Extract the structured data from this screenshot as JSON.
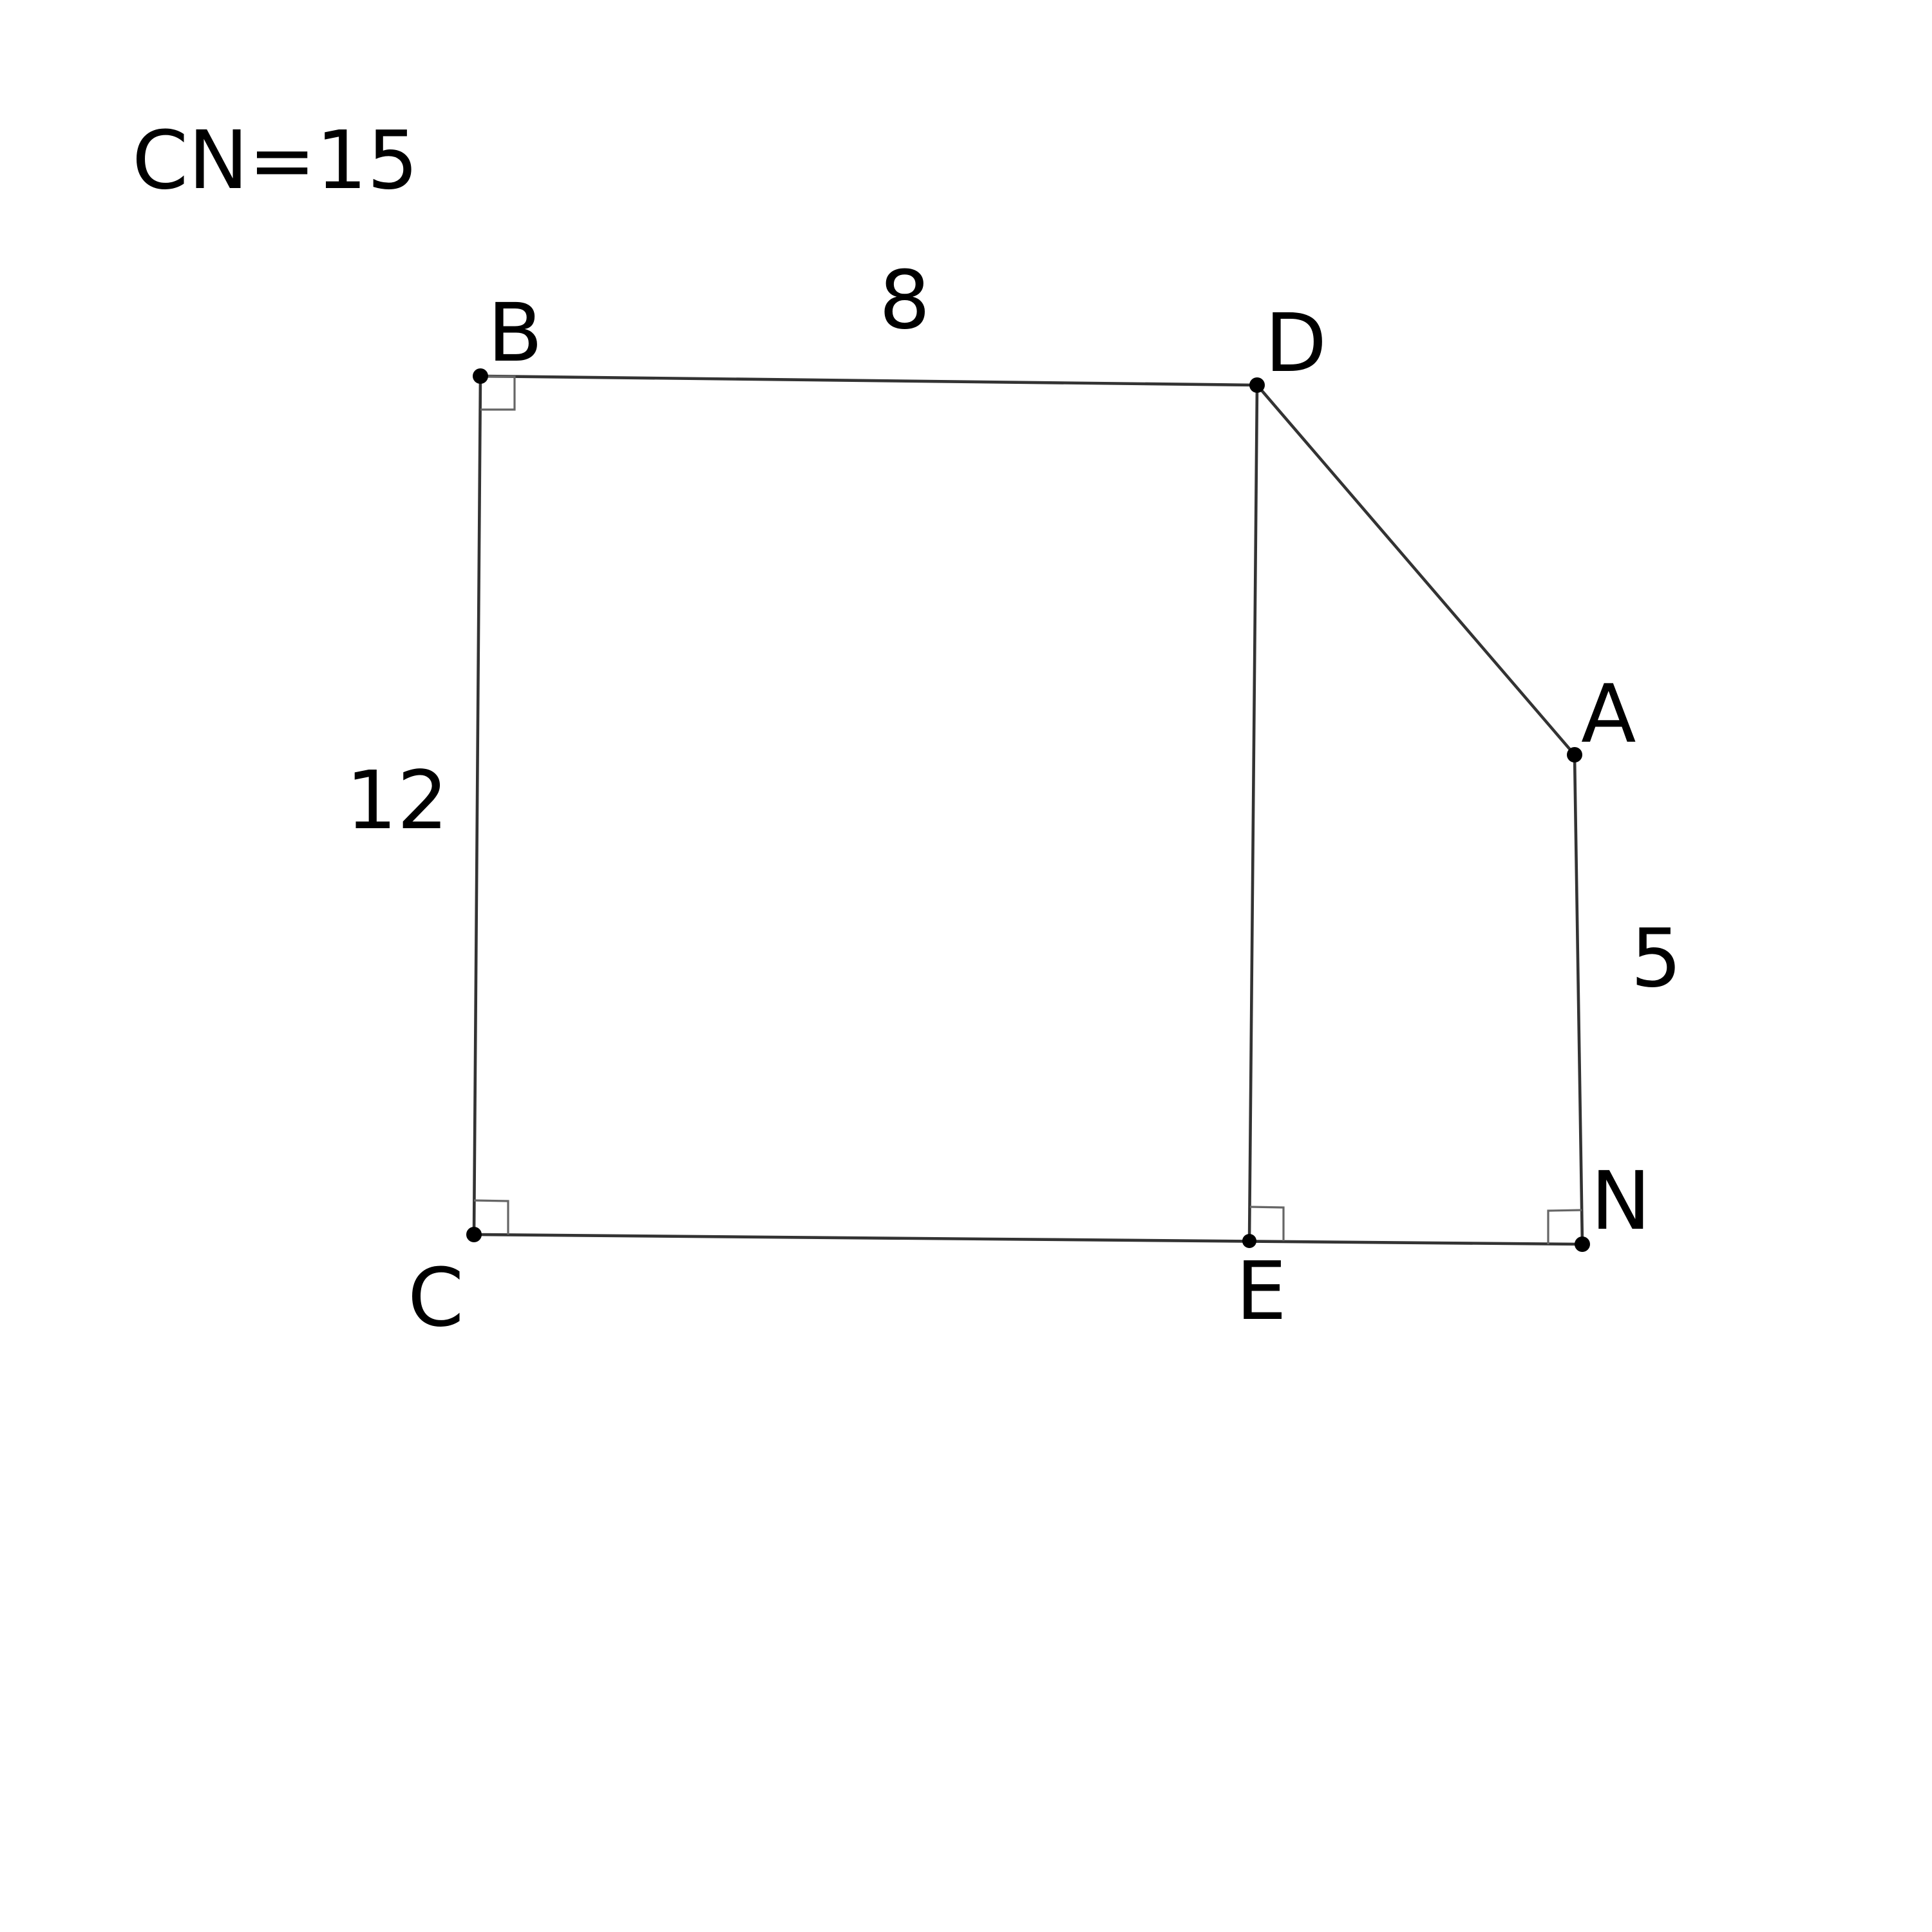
{
  "caption": "CN=15",
  "points": {
    "B": "B",
    "D": "D",
    "A": "A",
    "N": "N",
    "E": "E",
    "C": "C"
  },
  "segment_labels": {
    "BD": "8",
    "BC": "12",
    "AN": "5"
  },
  "colors": {
    "edge": "#333333",
    "right_angle_marker": "#666666",
    "point": "#000000",
    "text": "#000000"
  }
}
